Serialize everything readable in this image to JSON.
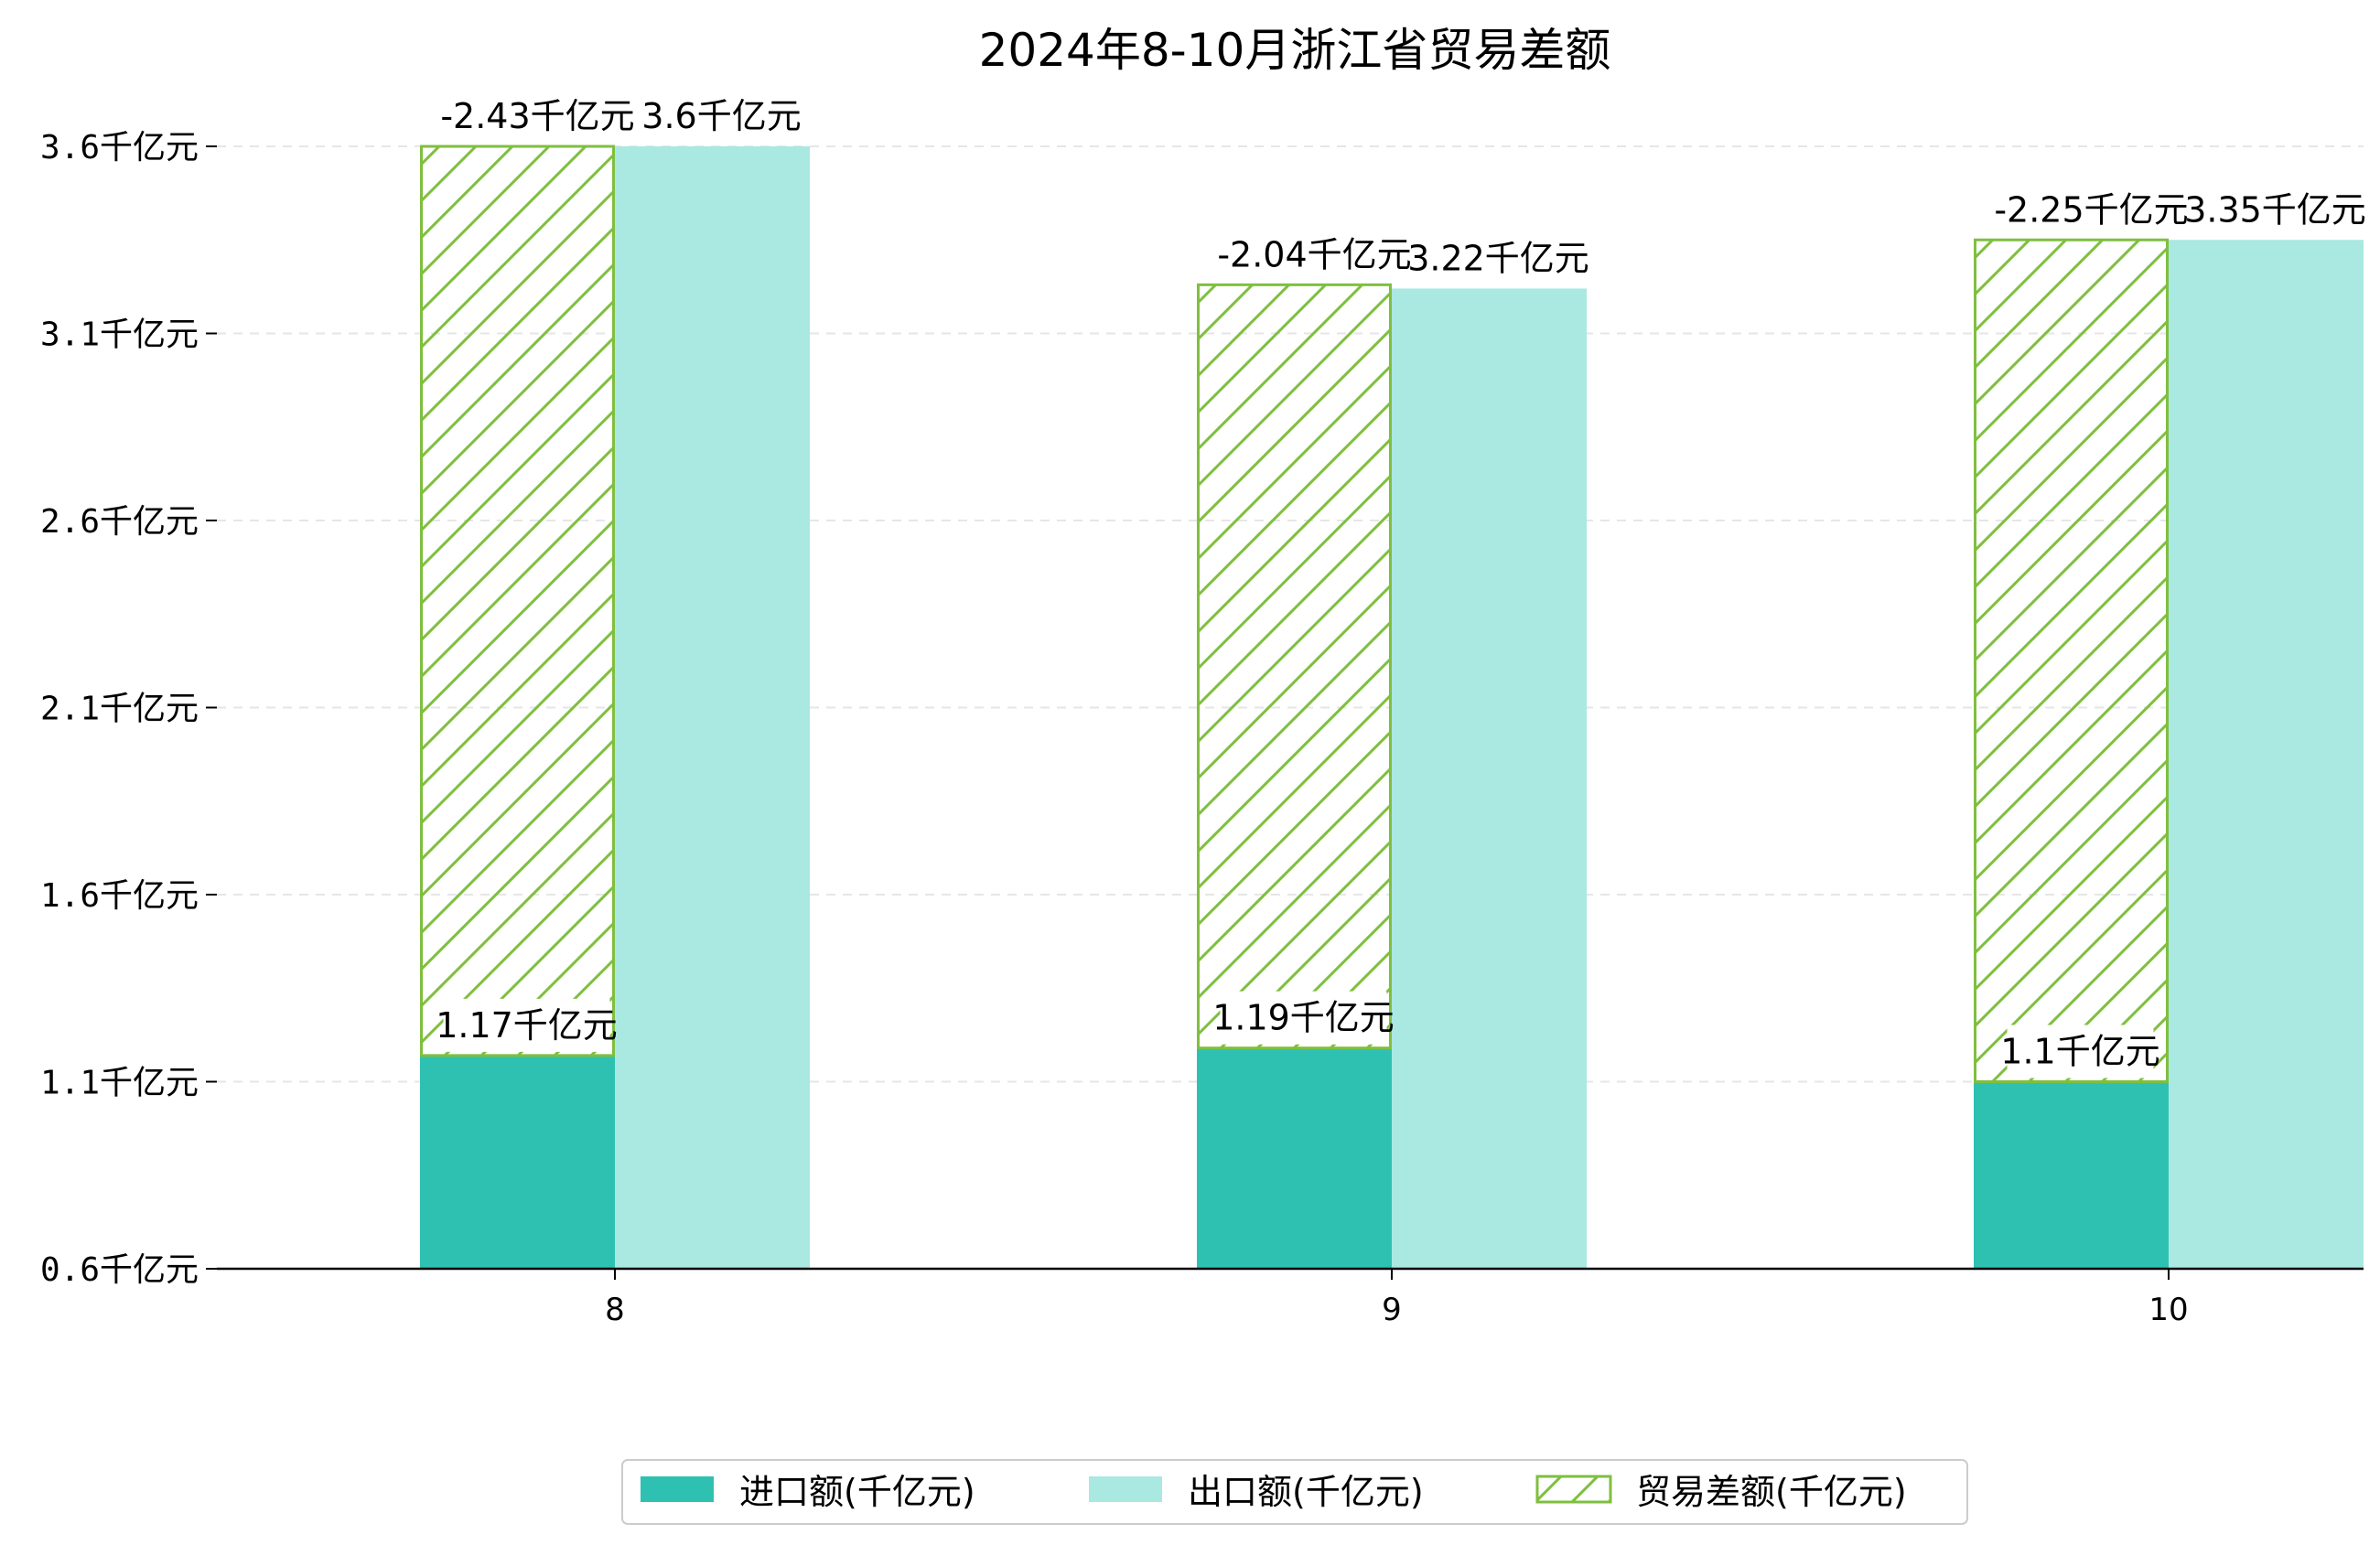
{
  "chart_data": {
    "type": "bar",
    "title": "2024年8-10月浙江省贸易差额",
    "categories": [
      "8",
      "9",
      "10"
    ],
    "unit": "千亿元",
    "ylim": [
      0.6,
      3.75
    ],
    "yticks": [
      0.6,
      1.1,
      1.6,
      2.1,
      2.6,
      3.1,
      3.6
    ],
    "ytick_labels": [
      "0.6千亿元",
      "1.1千亿元",
      "1.6千亿元",
      "2.1千亿元",
      "2.6千亿元",
      "3.1千亿元",
      "3.6千亿元"
    ],
    "grid": true,
    "legend_position": "bottom-center",
    "series": [
      {
        "name": "进口额(千亿元)",
        "values": [
          1.17,
          1.19,
          1.1
        ],
        "labels": [
          "1.17千亿元",
          "1.19千亿元",
          "1.1千亿元"
        ],
        "color": "#2ec1b2",
        "style": "solid"
      },
      {
        "name": "出口额(千亿元)",
        "values": [
          3.6,
          3.22,
          3.35
        ],
        "labels": [
          "3.6千亿元",
          "3.22千亿元",
          "3.35千亿元"
        ],
        "color": "#aae8e2",
        "style": "solid"
      },
      {
        "name": "贸易差额(千亿元)",
        "values": [
          -2.43,
          -2.04,
          -2.25
        ],
        "labels": [
          "-2.43千亿元",
          "-2.04千亿元",
          "-2.25千亿元"
        ],
        "color": "#7fbf3f",
        "style": "hatch"
      }
    ]
  }
}
